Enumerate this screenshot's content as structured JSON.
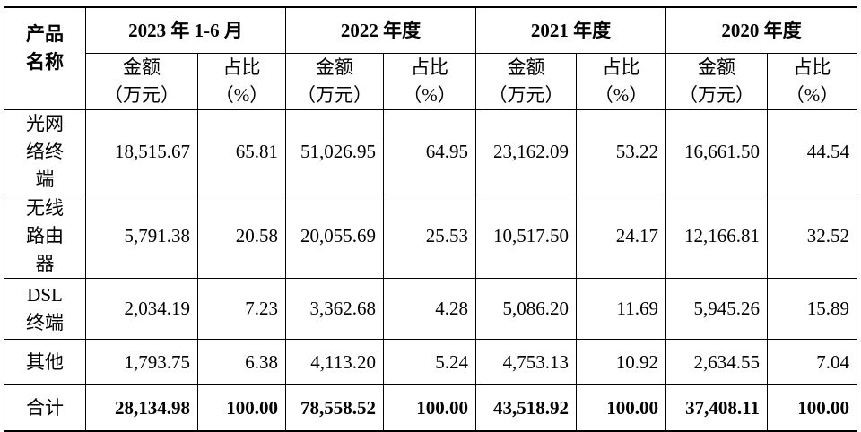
{
  "table": {
    "corner": "产品\n名称",
    "periods": [
      "2023 年 1-6 月",
      "2022 年度",
      "2021 年度",
      "2020 年度"
    ],
    "subheaders": [
      [
        "金额\n（万元）",
        "占比\n（%）"
      ],
      [
        "金额\n（万元）",
        "占比\n（%）"
      ],
      [
        "金额\n（万元）",
        "占比\n（%）"
      ],
      [
        "金额\n（万元）",
        "占比\n（%）"
      ]
    ],
    "rows": [
      [
        "光网\n络终\n端",
        "18,515.67",
        "65.81",
        "51,026.95",
        "64.95",
        "23,162.09",
        "53.22",
        "16,661.50",
        "44.54"
      ],
      [
        "无线\n路由\n器",
        "5,791.38",
        "20.58",
        "20,055.69",
        "25.53",
        "10,517.50",
        "24.17",
        "12,166.81",
        "32.52"
      ],
      [
        "DSL\n终端",
        "2,034.19",
        "7.23",
        "3,362.68",
        "4.28",
        "5,086.20",
        "11.69",
        "5,945.26",
        "15.89"
      ],
      [
        "其他",
        "1,793.75",
        "6.38",
        "4,113.20",
        "5.24",
        "4,753.13",
        "10.92",
        "2,634.55",
        "7.04"
      ],
      [
        "合计",
        "28,134.98",
        "100.00",
        "78,558.52",
        "100.00",
        "43,518.92",
        "100.00",
        "37,408.11",
        "100.00"
      ]
    ]
  }
}
